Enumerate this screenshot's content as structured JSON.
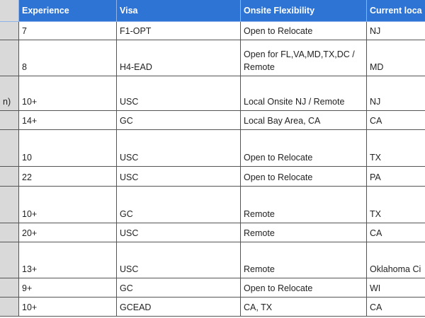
{
  "table": {
    "headers": [
      "Experience",
      "Visa",
      "Onsite Flexibility",
      "Current loca"
    ],
    "rows": [
      {
        "experience": "7",
        "visa": "F1-OPT",
        "onsite": "Open to Relocate",
        "location": "NJ"
      },
      {
        "experience": "8",
        "visa": "H4-EAD",
        "onsite": "Open for FL,VA,MD,TX,DC /\nRemote",
        "location": "MD"
      },
      {
        "first": "n)",
        "experience": "10+",
        "visa": "USC",
        "onsite": "Local Onsite NJ / Remote",
        "location": "NJ"
      },
      {
        "experience": "14+",
        "visa": "GC",
        "onsite": "Local Bay Area, CA",
        "location": "CA"
      },
      {
        "experience": "10",
        "visa": "USC",
        "onsite": "Open to Relocate",
        "location": "TX"
      },
      {
        "experience": "22",
        "visa": "USC",
        "onsite": "Open to Relocate",
        "location": "PA"
      },
      {
        "experience": "10+",
        "visa": "GC",
        "onsite": "Remote",
        "location": "TX"
      },
      {
        "experience": "20+",
        "visa": "USC",
        "onsite": "Remote",
        "location": "CA"
      },
      {
        "experience": "13+",
        "visa": "USC",
        "onsite": "Remote",
        "location": "Oklahoma Ci"
      },
      {
        "experience": "9+",
        "visa": "GC",
        "onsite": "Open to Relocate",
        "location": "WI"
      },
      {
        "experience": "10+",
        "visa": "GCEAD",
        "onsite": "CA, TX",
        "location": "CA"
      }
    ]
  }
}
